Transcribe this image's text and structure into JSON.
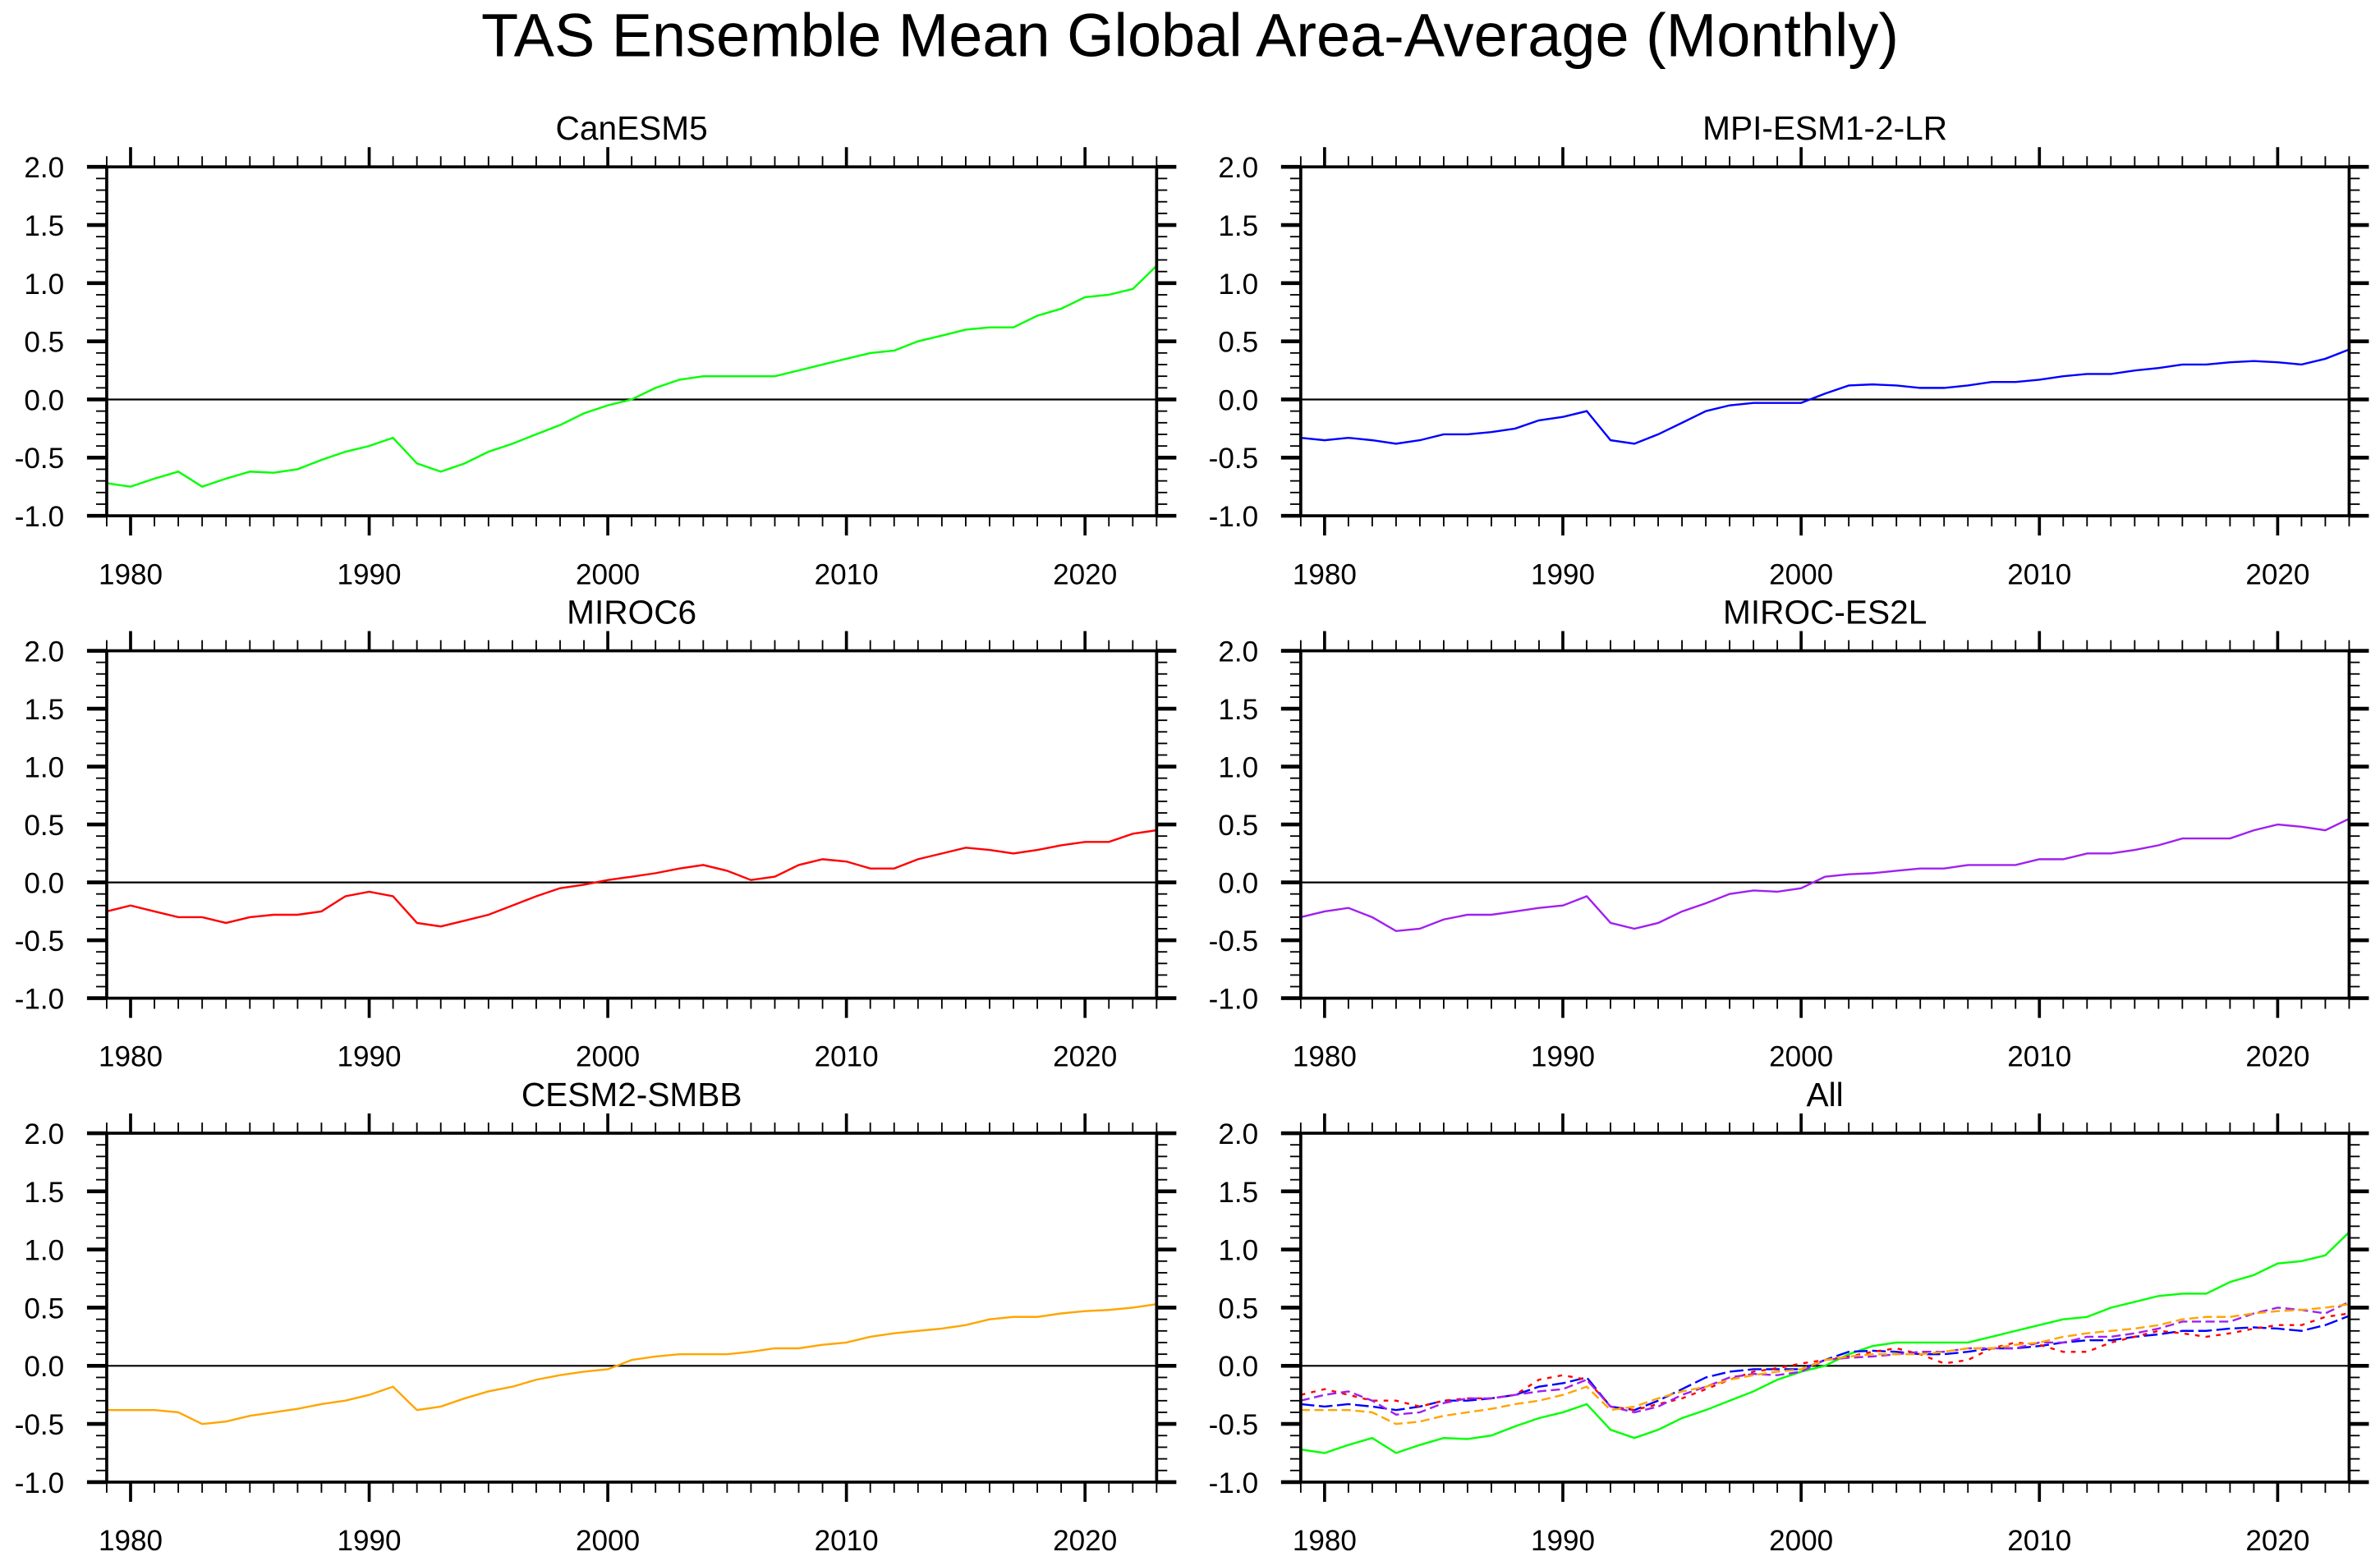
{
  "title": "TAS Ensemble Mean Global Area-Average (Monthly)",
  "chart_data": [
    {
      "type": "line",
      "title": "CanESM5",
      "xlim": [
        1979,
        2023
      ],
      "ylim": [
        -1.0,
        2.0
      ],
      "x_ticks": [
        "1980",
        "1990",
        "2000",
        "2010",
        "2020"
      ],
      "y_ticks": [
        "2.0",
        "1.5",
        "1.0",
        "0.5",
        "0.0",
        "-0.5",
        "-1.0"
      ],
      "reference_line": 0.0,
      "series": [
        {
          "color": "#00ff00",
          "dash": "solid",
          "key": "CanESM5"
        }
      ]
    },
    {
      "type": "line",
      "title": "MPI-ESM1-2-LR",
      "xlim": [
        1979,
        2023
      ],
      "ylim": [
        -1.0,
        2.0
      ],
      "x_ticks": [
        "1980",
        "1990",
        "2000",
        "2010",
        "2020"
      ],
      "y_ticks": [
        "2.0",
        "1.5",
        "1.0",
        "0.5",
        "0.0",
        "-0.5",
        "-1.0"
      ],
      "reference_line": 0.0,
      "series": [
        {
          "color": "#0000ff",
          "dash": "solid",
          "key": "MPI-ESM1-2-LR"
        }
      ]
    },
    {
      "type": "line",
      "title": "MIROC6",
      "xlim": [
        1979,
        2023
      ],
      "ylim": [
        -1.0,
        2.0
      ],
      "x_ticks": [
        "1980",
        "1990",
        "2000",
        "2010",
        "2020"
      ],
      "y_ticks": [
        "2.0",
        "1.5",
        "1.0",
        "0.5",
        "0.0",
        "-0.5",
        "-1.0"
      ],
      "reference_line": 0.0,
      "series": [
        {
          "color": "#ff0000",
          "dash": "solid",
          "key": "MIROC6"
        }
      ]
    },
    {
      "type": "line",
      "title": "MIROC-ES2L",
      "xlim": [
        1979,
        2023
      ],
      "ylim": [
        -1.0,
        2.0
      ],
      "x_ticks": [
        "1980",
        "1990",
        "2000",
        "2010",
        "2020"
      ],
      "y_ticks": [
        "2.0",
        "1.5",
        "1.0",
        "0.5",
        "0.0",
        "-0.5",
        "-1.0"
      ],
      "reference_line": 0.0,
      "series": [
        {
          "color": "#a020f0",
          "dash": "solid",
          "key": "MIROC-ES2L"
        }
      ]
    },
    {
      "type": "line",
      "title": "CESM2-SMBB",
      "xlim": [
        1979,
        2023
      ],
      "ylim": [
        -1.0,
        2.0
      ],
      "x_ticks": [
        "1980",
        "1990",
        "2000",
        "2010",
        "2020"
      ],
      "y_ticks": [
        "2.0",
        "1.5",
        "1.0",
        "0.5",
        "0.0",
        "-0.5",
        "-1.0"
      ],
      "reference_line": 0.0,
      "series": [
        {
          "color": "#ffa500",
          "dash": "solid",
          "key": "CESM2-SMBB"
        }
      ]
    },
    {
      "type": "line",
      "title": "All",
      "xlim": [
        1979,
        2023
      ],
      "ylim": [
        -1.0,
        2.0
      ],
      "x_ticks": [
        "1980",
        "1990",
        "2000",
        "2010",
        "2020"
      ],
      "y_ticks": [
        "2.0",
        "1.5",
        "1.0",
        "0.5",
        "0.0",
        "-0.5",
        "-1.0"
      ],
      "reference_line": 0.0,
      "series": [
        {
          "color": "#00ff00",
          "dash": "solid",
          "key": "CanESM5"
        },
        {
          "color": "#0000ff",
          "dash": "long-dash",
          "key": "MPI-ESM1-2-LR"
        },
        {
          "color": "#ff0000",
          "dash": "short-dash",
          "key": "MIROC6"
        },
        {
          "color": "#a020f0",
          "dash": "dash",
          "key": "MIROC-ES2L"
        },
        {
          "color": "#ffa500",
          "dash": "dash",
          "key": "CESM2-SMBB"
        }
      ]
    }
  ],
  "x_years": [
    1979,
    1980,
    1981,
    1982,
    1983,
    1984,
    1985,
    1986,
    1987,
    1988,
    1989,
    1990,
    1991,
    1992,
    1993,
    1994,
    1995,
    1996,
    1997,
    1998,
    1999,
    2000,
    2001,
    2002,
    2003,
    2004,
    2005,
    2006,
    2007,
    2008,
    2009,
    2010,
    2011,
    2012,
    2013,
    2014,
    2015,
    2016,
    2017,
    2018,
    2019,
    2020,
    2021,
    2022,
    2023
  ],
  "values": {
    "CanESM5": [
      -0.72,
      -0.75,
      -0.68,
      -0.62,
      -0.75,
      -0.68,
      -0.62,
      -0.63,
      -0.6,
      -0.52,
      -0.45,
      -0.4,
      -0.33,
      -0.55,
      -0.62,
      -0.55,
      -0.45,
      -0.38,
      -0.3,
      -0.22,
      -0.12,
      -0.05,
      0.0,
      0.1,
      0.17,
      0.2,
      0.2,
      0.2,
      0.2,
      0.25,
      0.3,
      0.35,
      0.4,
      0.42,
      0.5,
      0.55,
      0.6,
      0.62,
      0.62,
      0.72,
      0.78,
      0.88,
      0.9,
      0.95,
      1.15
    ],
    "MPI-ESM1-2-LR": [
      -0.33,
      -0.35,
      -0.33,
      -0.35,
      -0.38,
      -0.35,
      -0.3,
      -0.3,
      -0.28,
      -0.25,
      -0.18,
      -0.15,
      -0.1,
      -0.35,
      -0.38,
      -0.3,
      -0.2,
      -0.1,
      -0.05,
      -0.03,
      -0.03,
      -0.03,
      0.05,
      0.12,
      0.13,
      0.12,
      0.1,
      0.1,
      0.12,
      0.15,
      0.15,
      0.17,
      0.2,
      0.22,
      0.22,
      0.25,
      0.27,
      0.3,
      0.3,
      0.32,
      0.33,
      0.32,
      0.3,
      0.35,
      0.43
    ],
    "MIROC6": [
      -0.25,
      -0.2,
      -0.25,
      -0.3,
      -0.3,
      -0.35,
      -0.3,
      -0.28,
      -0.28,
      -0.25,
      -0.12,
      -0.08,
      -0.12,
      -0.35,
      -0.38,
      -0.33,
      -0.28,
      -0.2,
      -0.12,
      -0.05,
      -0.02,
      0.02,
      0.05,
      0.08,
      0.12,
      0.15,
      0.1,
      0.02,
      0.05,
      0.15,
      0.2,
      0.18,
      0.12,
      0.12,
      0.2,
      0.25,
      0.3,
      0.28,
      0.25,
      0.28,
      0.32,
      0.35,
      0.35,
      0.42,
      0.45
    ],
    "MIROC-ES2L": [
      -0.3,
      -0.25,
      -0.22,
      -0.3,
      -0.42,
      -0.4,
      -0.32,
      -0.28,
      -0.28,
      -0.25,
      -0.22,
      -0.2,
      -0.12,
      -0.35,
      -0.4,
      -0.35,
      -0.25,
      -0.18,
      -0.1,
      -0.07,
      -0.08,
      -0.05,
      0.05,
      0.07,
      0.08,
      0.1,
      0.12,
      0.12,
      0.15,
      0.15,
      0.15,
      0.2,
      0.2,
      0.25,
      0.25,
      0.28,
      0.32,
      0.38,
      0.38,
      0.38,
      0.45,
      0.5,
      0.48,
      0.45,
      0.55
    ],
    "CESM2-SMBB": [
      -0.38,
      -0.38,
      -0.38,
      -0.4,
      -0.5,
      -0.48,
      -0.43,
      -0.4,
      -0.37,
      -0.33,
      -0.3,
      -0.25,
      -0.18,
      -0.38,
      -0.35,
      -0.28,
      -0.22,
      -0.18,
      -0.12,
      -0.08,
      -0.05,
      -0.03,
      0.05,
      0.08,
      0.1,
      0.1,
      0.1,
      0.12,
      0.15,
      0.15,
      0.18,
      0.2,
      0.25,
      0.28,
      0.3,
      0.32,
      0.35,
      0.4,
      0.42,
      0.42,
      0.45,
      0.47,
      0.48,
      0.5,
      0.53
    ]
  }
}
